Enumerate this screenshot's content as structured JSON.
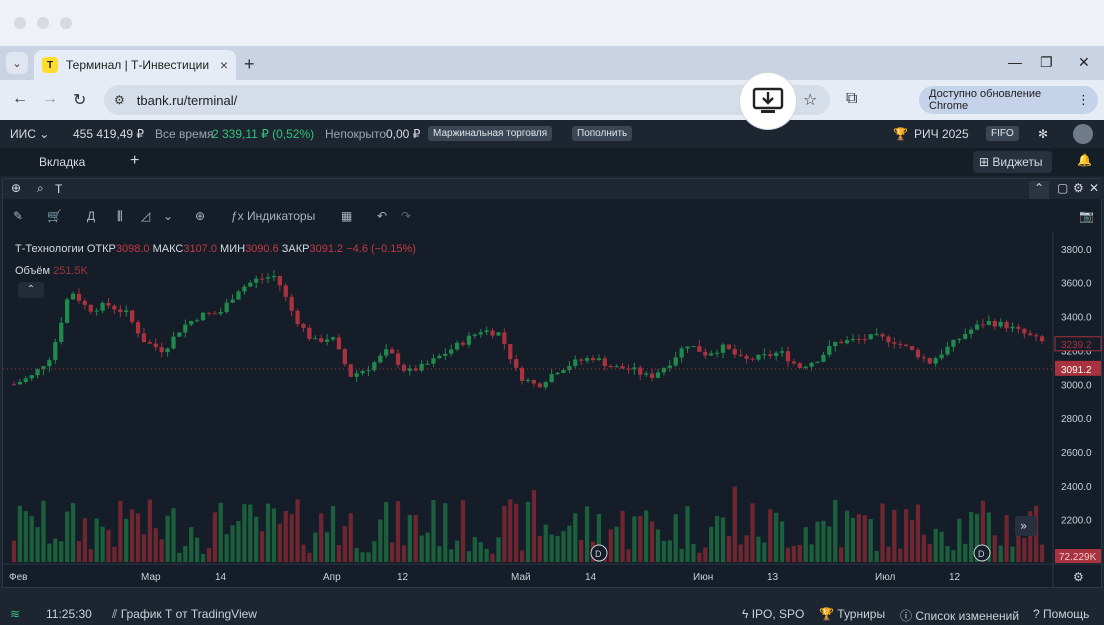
{
  "browser": {
    "tab_title": "Терминал | Т-Инвестиции",
    "favicon_letter": "Т",
    "url": "tbank.ru/terminal/",
    "update_label": "Доступно обновление Chrome"
  },
  "account": {
    "name": "ИИС",
    "balance": "455 419,49 ₽",
    "period_label": "Все время",
    "change": "2 339,11 ₽ (0,52%)",
    "uncovered_label": "Непокрыто",
    "uncovered_value": "0,00 ₽",
    "margin_btn": "Маржинальная торговля",
    "topup_btn": "Пополнить",
    "contest_label": "РИЧ 2025",
    "fifo_label": "FIFO"
  },
  "workspace": {
    "tab_label": "Вкладка",
    "widgets_label": "Виджеты"
  },
  "chart_widget": {
    "search_value": "Т",
    "interval": "Д",
    "indicators_label": "Индикаторы",
    "legend": {
      "name": "Т-Технологии",
      "open_label": "ОТКР",
      "open": "3098.0",
      "high_label": "МАКС",
      "high": "3107.0",
      "low_label": "МИН",
      "low": "3090.6",
      "close_label": "ЗАКР",
      "close": "3091.2",
      "change": "−4.6 (−0.15%)",
      "volume_label": "Объём",
      "volume": "251.5K"
    },
    "price_badge": "3091.2",
    "price_line_label": "3239.2",
    "volume_badge": "72.229K",
    "dividend_marker": "D"
  },
  "chart_data": {
    "type": "candlestick",
    "y_ticks": [
      "3800.0",
      "3600.0",
      "3400.0",
      "3200.0",
      "3000.0",
      "2800.0",
      "2600.0",
      "2400.0",
      "2200.0",
      "2000.0"
    ],
    "ylim": [
      1950,
      3870
    ],
    "x_labels": [
      "Фев",
      "Мар",
      "14",
      "Апр",
      "12",
      "Май",
      "14",
      "Июн",
      "13",
      "Июл",
      "12"
    ],
    "colors": {
      "up": "#1f8a4c",
      "down": "#a8323d"
    }
  },
  "statusbar": {
    "time": "11:25:30",
    "tradingview": "График Т от TradingView",
    "ipo": "IPO, SPO",
    "tournaments": "Турниры",
    "changelog": "Список изменений",
    "help": "Помощь"
  }
}
